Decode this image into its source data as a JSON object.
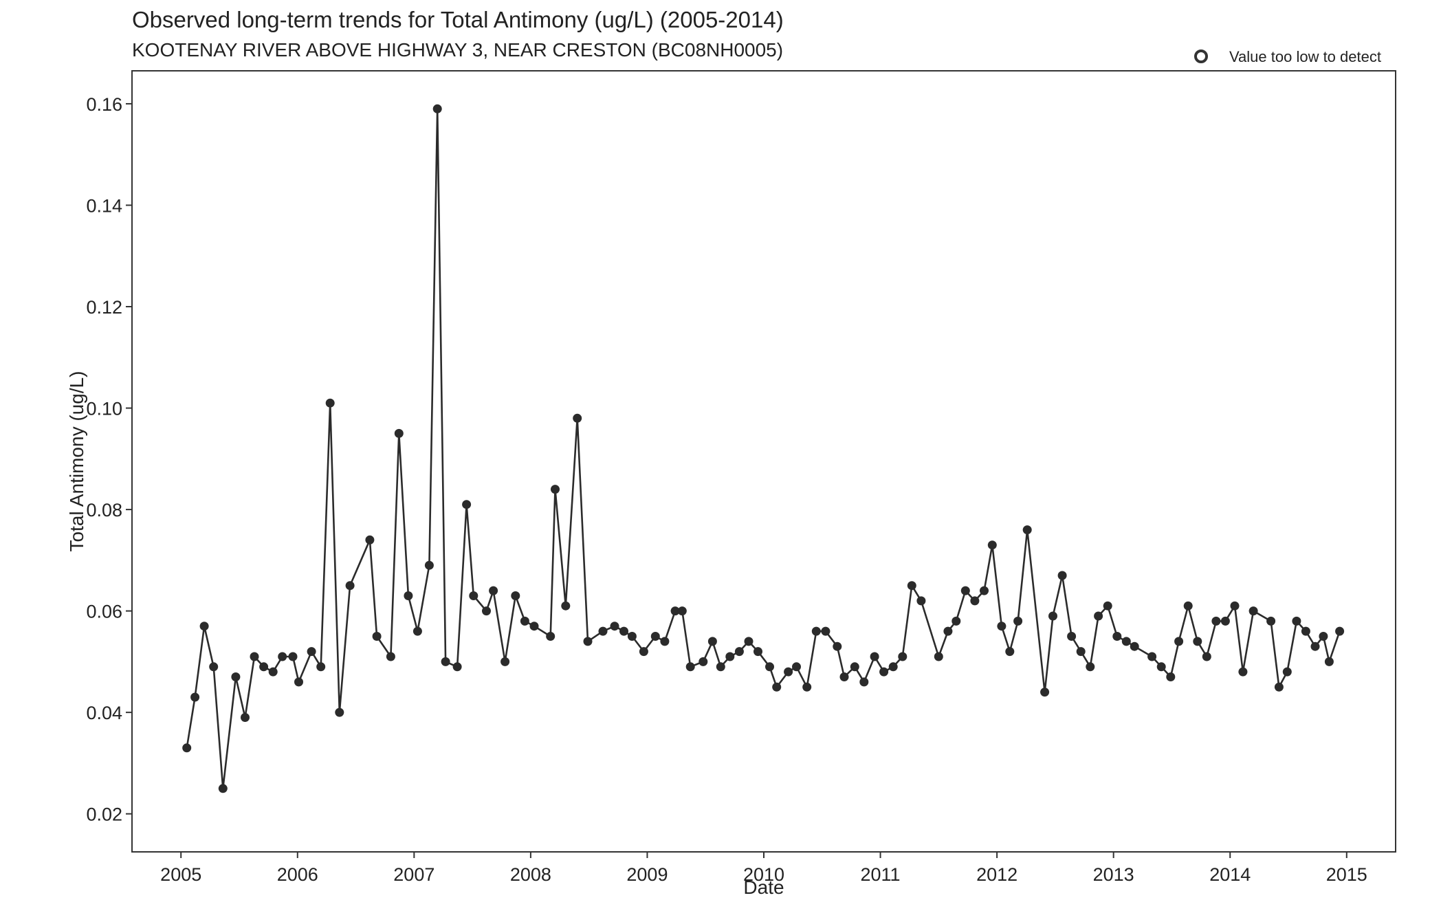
{
  "chart_data": {
    "type": "line",
    "title": "Observed long-term trends for Total Antimony (ug/L) (2005-2014)",
    "subtitle": "KOOTENAY RIVER ABOVE HIGHWAY 3, NEAR CRESTON (BC08NH0005)",
    "xlabel": "Date",
    "ylabel": "Total Antimony (ug/L)",
    "xlim": [
      2004.58,
      2015.42
    ],
    "ylim": [
      0.0125,
      0.1665
    ],
    "x_ticks": [
      "2005",
      "2006",
      "2007",
      "2008",
      "2009",
      "2010",
      "2011",
      "2012",
      "2013",
      "2014",
      "2015"
    ],
    "y_ticks": [
      "0.02",
      "0.04",
      "0.06",
      "0.08",
      "0.10",
      "0.12",
      "0.14",
      "0.16"
    ],
    "legend": {
      "label": "Value too low to detect",
      "position": "top-right",
      "marker": "open-circle"
    },
    "grid": false,
    "line_color": "#2b2b2b",
    "point_color": "#2b2b2b",
    "series": [
      {
        "values": [
          [
            2005.05,
            0.033
          ],
          [
            2005.12,
            0.043
          ],
          [
            2005.2,
            0.057
          ],
          [
            2005.28,
            0.049
          ],
          [
            2005.36,
            0.025
          ],
          [
            2005.47,
            0.047
          ],
          [
            2005.55,
            0.039
          ],
          [
            2005.63,
            0.051
          ],
          [
            2005.71,
            0.049
          ],
          [
            2005.79,
            0.048
          ],
          [
            2005.87,
            0.051
          ],
          [
            2005.96,
            0.051
          ],
          [
            2006.01,
            0.046
          ],
          [
            2006.12,
            0.052
          ],
          [
            2006.2,
            0.049
          ],
          [
            2006.28,
            0.101
          ],
          [
            2006.36,
            0.04
          ],
          [
            2006.45,
            0.065
          ],
          [
            2006.62,
            0.074
          ],
          [
            2006.68,
            0.055
          ],
          [
            2006.8,
            0.051
          ],
          [
            2006.87,
            0.095
          ],
          [
            2006.95,
            0.063
          ],
          [
            2007.03,
            0.056
          ],
          [
            2007.13,
            0.069
          ],
          [
            2007.2,
            0.159
          ],
          [
            2007.27,
            0.05
          ],
          [
            2007.37,
            0.049
          ],
          [
            2007.45,
            0.081
          ],
          [
            2007.51,
            0.063
          ],
          [
            2007.62,
            0.06
          ],
          [
            2007.68,
            0.064
          ],
          [
            2007.78,
            0.05
          ],
          [
            2007.87,
            0.063
          ],
          [
            2007.95,
            0.058
          ],
          [
            2008.03,
            0.057
          ],
          [
            2008.17,
            0.055
          ],
          [
            2008.21,
            0.084
          ],
          [
            2008.3,
            0.061
          ],
          [
            2008.4,
            0.098
          ],
          [
            2008.49,
            0.054
          ],
          [
            2008.62,
            0.056
          ],
          [
            2008.72,
            0.057
          ],
          [
            2008.8,
            0.056
          ],
          [
            2008.87,
            0.055
          ],
          [
            2008.97,
            0.052
          ],
          [
            2009.07,
            0.055
          ],
          [
            2009.15,
            0.054
          ],
          [
            2009.24,
            0.06
          ],
          [
            2009.3,
            0.06
          ],
          [
            2009.37,
            0.049
          ],
          [
            2009.48,
            0.05
          ],
          [
            2009.56,
            0.054
          ],
          [
            2009.63,
            0.049
          ],
          [
            2009.71,
            0.051
          ],
          [
            2009.79,
            0.052
          ],
          [
            2009.87,
            0.054
          ],
          [
            2009.95,
            0.052
          ],
          [
            2010.05,
            0.049
          ],
          [
            2010.11,
            0.045
          ],
          [
            2010.21,
            0.048
          ],
          [
            2010.28,
            0.049
          ],
          [
            2010.37,
            0.045
          ],
          [
            2010.45,
            0.056
          ],
          [
            2010.53,
            0.056
          ],
          [
            2010.63,
            0.053
          ],
          [
            2010.69,
            0.047
          ],
          [
            2010.78,
            0.049
          ],
          [
            2010.86,
            0.046
          ],
          [
            2010.95,
            0.051
          ],
          [
            2011.03,
            0.048
          ],
          [
            2011.11,
            0.049
          ],
          [
            2011.19,
            0.051
          ],
          [
            2011.27,
            0.065
          ],
          [
            2011.35,
            0.062
          ],
          [
            2011.5,
            0.051
          ],
          [
            2011.58,
            0.056
          ],
          [
            2011.65,
            0.058
          ],
          [
            2011.73,
            0.064
          ],
          [
            2011.81,
            0.062
          ],
          [
            2011.89,
            0.064
          ],
          [
            2011.96,
            0.073
          ],
          [
            2012.04,
            0.057
          ],
          [
            2012.11,
            0.052
          ],
          [
            2012.18,
            0.058
          ],
          [
            2012.26,
            0.076
          ],
          [
            2012.41,
            0.044
          ],
          [
            2012.48,
            0.059
          ],
          [
            2012.56,
            0.067
          ],
          [
            2012.64,
            0.055
          ],
          [
            2012.72,
            0.052
          ],
          [
            2012.8,
            0.049
          ],
          [
            2012.87,
            0.059
          ],
          [
            2012.95,
            0.061
          ],
          [
            2013.03,
            0.055
          ],
          [
            2013.11,
            0.054
          ],
          [
            2013.18,
            0.053
          ],
          [
            2013.33,
            0.051
          ],
          [
            2013.41,
            0.049
          ],
          [
            2013.49,
            0.047
          ],
          [
            2013.56,
            0.054
          ],
          [
            2013.64,
            0.061
          ],
          [
            2013.72,
            0.054
          ],
          [
            2013.8,
            0.051
          ],
          [
            2013.88,
            0.058
          ],
          [
            2013.96,
            0.058
          ],
          [
            2014.04,
            0.061
          ],
          [
            2014.11,
            0.048
          ],
          [
            2014.2,
            0.06
          ],
          [
            2014.35,
            0.058
          ],
          [
            2014.42,
            0.045
          ],
          [
            2014.49,
            0.048
          ],
          [
            2014.57,
            0.058
          ],
          [
            2014.65,
            0.056
          ],
          [
            2014.73,
            0.053
          ],
          [
            2014.8,
            0.055
          ],
          [
            2014.85,
            0.05
          ],
          [
            2014.94,
            0.056
          ]
        ]
      }
    ]
  }
}
